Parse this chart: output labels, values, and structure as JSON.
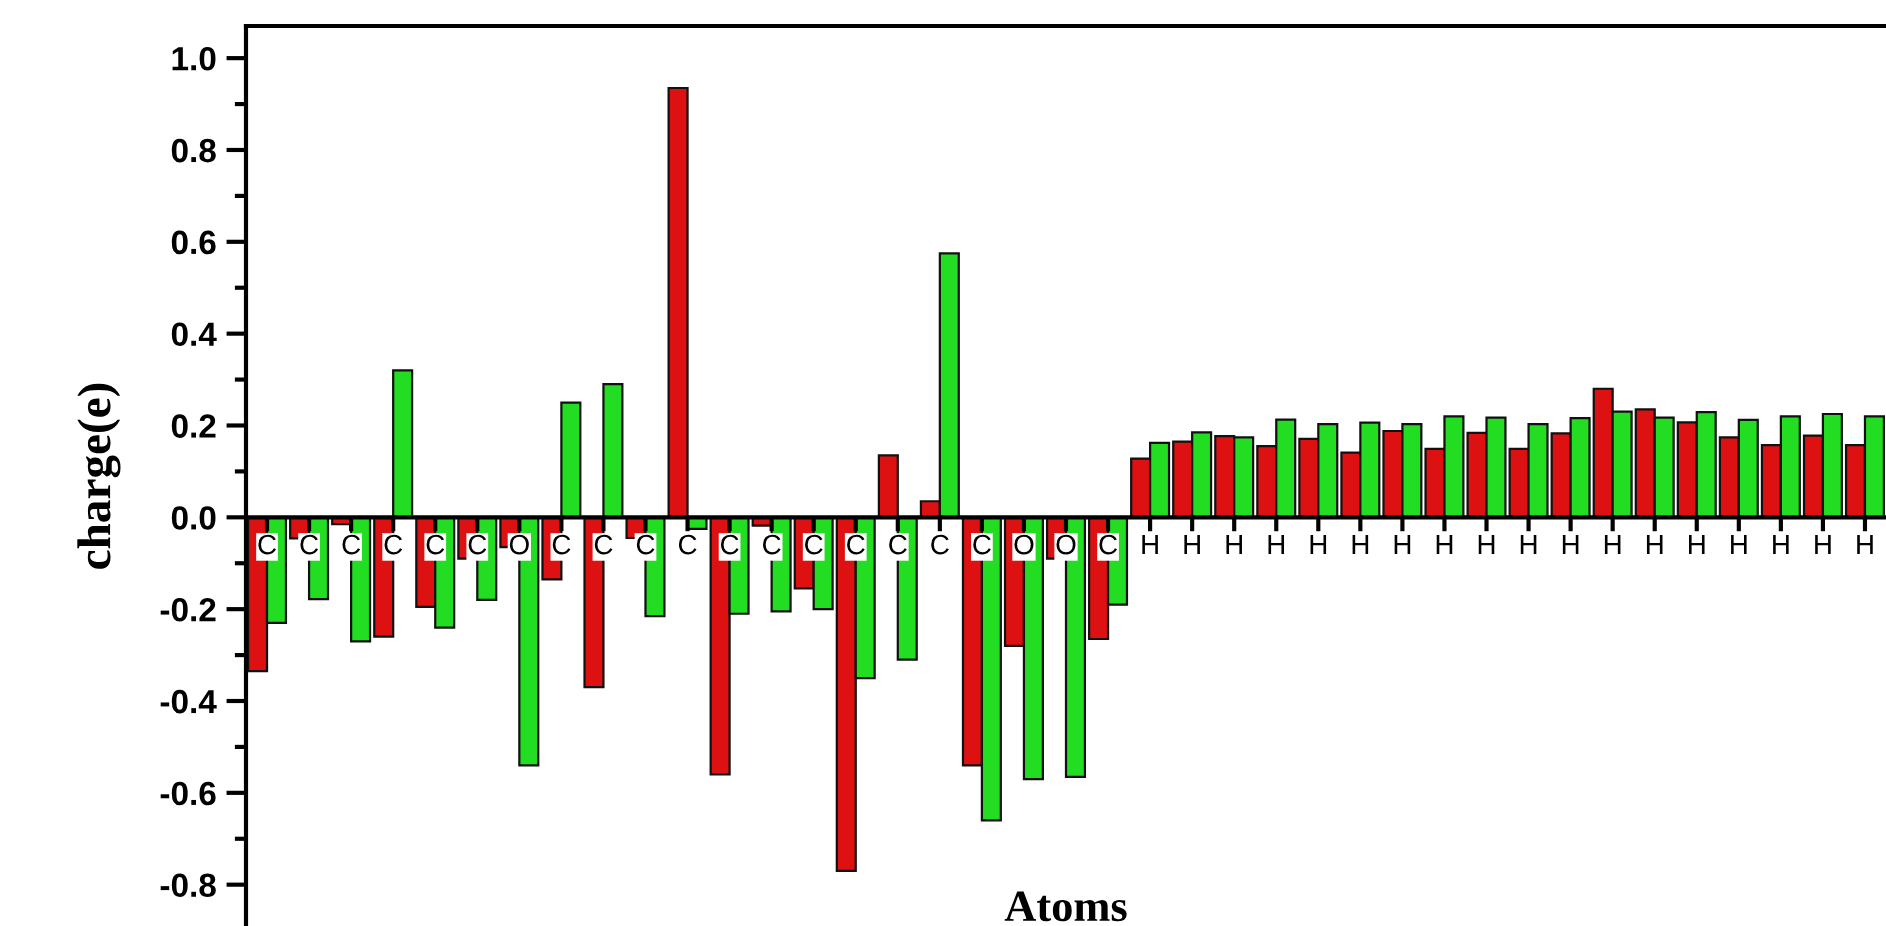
{
  "chart_data": {
    "type": "bar",
    "xlabel": "Atoms",
    "ylabel": "charge(e)",
    "categories": [
      "C",
      "C",
      "C",
      "C",
      "C",
      "C",
      "O",
      "C",
      "C",
      "C",
      "C",
      "C",
      "C",
      "C",
      "C",
      "C",
      "C",
      "C",
      "O",
      "O",
      "C",
      "H",
      "H",
      "H",
      "H",
      "H",
      "H",
      "H",
      "H",
      "H",
      "H",
      "H",
      "H",
      "H",
      "H",
      "H",
      "H",
      "H",
      "H"
    ],
    "series": [
      {
        "color": "#dd1111",
        "values": [
          -0.335,
          -0.046,
          -0.015,
          -0.26,
          -0.195,
          -0.09,
          -0.065,
          -0.135,
          -0.37,
          -0.045,
          0.935,
          -0.56,
          -0.018,
          -0.155,
          -0.77,
          0.135,
          0.035,
          -0.54,
          -0.28,
          -0.09,
          -0.265,
          0.128,
          0.165,
          0.177,
          0.155,
          0.171,
          0.141,
          0.188,
          0.149,
          0.184,
          0.149,
          0.183,
          0.28,
          0.235,
          0.207,
          0.174,
          0.157,
          0.178,
          0.157
        ]
      },
      {
        "color": "#22dd22",
        "values": [
          -0.23,
          -0.178,
          -0.27,
          0.32,
          -0.24,
          -0.18,
          -0.54,
          0.25,
          0.29,
          -0.215,
          -0.025,
          -0.21,
          -0.205,
          -0.2,
          -0.35,
          -0.31,
          0.575,
          -0.66,
          -0.57,
          -0.565,
          -0.19,
          0.162,
          0.185,
          0.174,
          0.213,
          0.203,
          0.206,
          0.203,
          0.22,
          0.217,
          0.203,
          0.216,
          0.23,
          0.217,
          0.229,
          0.212,
          0.22,
          0.225,
          0.22
        ]
      }
    ],
    "ylim": [
      -0.89,
      1.07
    ],
    "yticks": [
      {
        "value": -0.8,
        "label": "-0.8"
      },
      {
        "value": -0.6,
        "label": "-0.6"
      },
      {
        "value": -0.4,
        "label": "-0.4"
      },
      {
        "value": -0.2,
        "label": "-0.2"
      },
      {
        "value": 0.0,
        "label": "0.0"
      },
      {
        "value": 0.2,
        "label": "0.2"
      },
      {
        "value": 0.4,
        "label": "0.4"
      },
      {
        "value": 0.6,
        "label": "0.6"
      },
      {
        "value": 0.8,
        "label": "0.8"
      },
      {
        "value": 1.0,
        "label": "1.0"
      }
    ],
    "grid": false,
    "legend": false
  }
}
